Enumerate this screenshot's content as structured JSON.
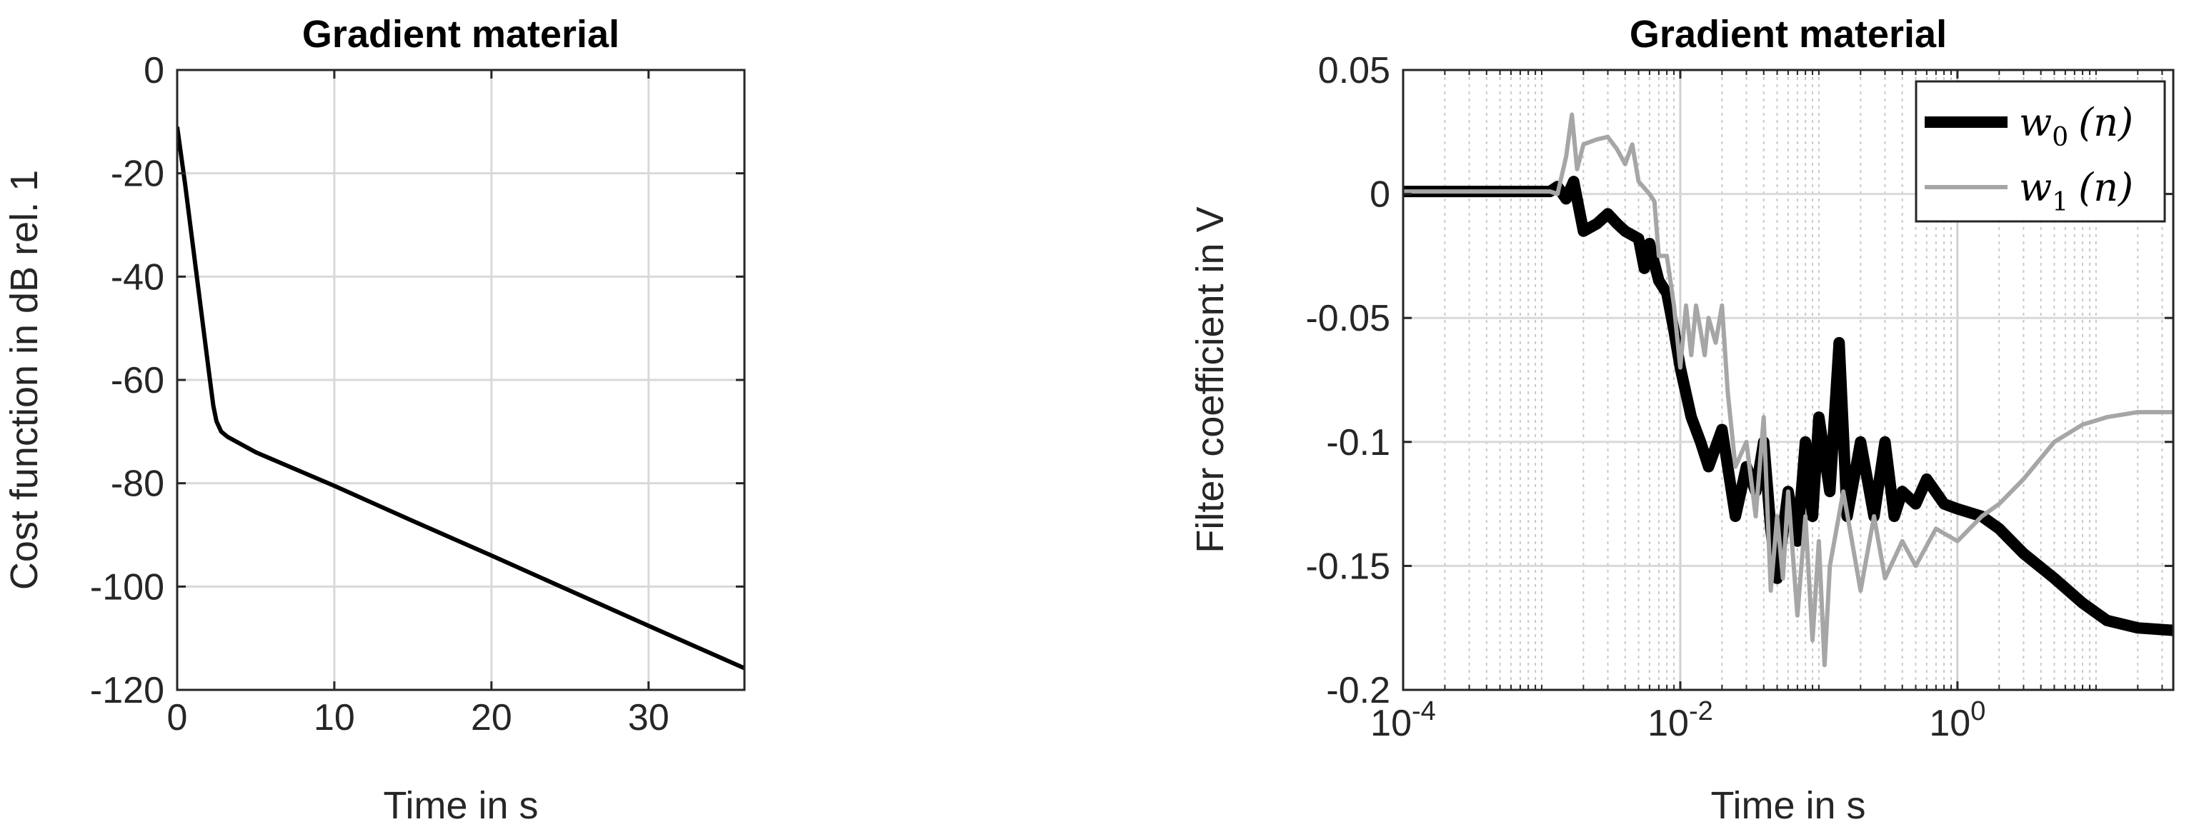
{
  "chart_data": [
    {
      "type": "line",
      "title": "Gradient material",
      "xlabel": "Time in s",
      "ylabel": "Cost function in dB rel. 1",
      "xlim": [
        0,
        36.1
      ],
      "ylim": [
        -120,
        0
      ],
      "xscale": "linear",
      "grid": true,
      "xticks": [
        0,
        10,
        20,
        30
      ],
      "xtick_labels": [
        "0",
        "10",
        "20",
        "30"
      ],
      "yticks": [
        0,
        -20,
        -40,
        -60,
        -80,
        -100,
        -120
      ],
      "ytick_labels": [
        "0",
        "-20",
        "-40",
        "-60",
        "-80",
        "-100",
        "-120"
      ],
      "series": [
        {
          "color": "#000000",
          "x": [
            0,
            0.5,
            1.0,
            1.5,
            2.0,
            2.3,
            2.5,
            2.8,
            3.2,
            5,
            10,
            15,
            20,
            25,
            30,
            36.1
          ],
          "y": [
            -11,
            -22,
            -34,
            -46,
            -58,
            -65,
            -68,
            -70,
            -71,
            -74,
            -80.5,
            -87.3,
            -94,
            -100.8,
            -107.6,
            -115.8
          ]
        }
      ]
    },
    {
      "type": "line",
      "title": "Gradient material",
      "xlabel": "Time in s",
      "ylabel": "Filter coefficient in V",
      "xscale": "log",
      "xlim": [
        0.0001,
        36.1
      ],
      "ylim": [
        -0.2,
        0.05
      ],
      "grid": true,
      "legend": "top-right",
      "xticks": [
        0.0001,
        0.01,
        1
      ],
      "xtick_labels": [
        {
          "base": "10",
          "exp": "-4"
        },
        {
          "base": "10",
          "exp": "-2"
        },
        {
          "base": "10",
          "exp": "0"
        }
      ],
      "yticks": [
        0.05,
        0,
        -0.05,
        -0.1,
        -0.15,
        -0.2
      ],
      "ytick_labels": [
        "0.05",
        "0",
        "-0.05",
        "-0.1",
        "-0.15",
        "-0.2"
      ],
      "series": [
        {
          "name": "w0 (n)",
          "legend_main": "w",
          "legend_sub": "0",
          "legend_rest": "(n)",
          "color": "#000000",
          "style": "thick",
          "x": [
            0.0001,
            0.0009,
            0.00115,
            0.0013,
            0.0015,
            0.0017,
            0.002,
            0.0025,
            0.003,
            0.0035,
            0.004,
            0.005,
            0.0055,
            0.006,
            0.0065,
            0.007,
            0.008,
            0.009,
            0.01,
            0.012,
            0.014,
            0.016,
            0.02,
            0.025,
            0.03,
            0.035,
            0.04,
            0.045,
            0.05,
            0.06,
            0.07,
            0.08,
            0.09,
            0.1,
            0.12,
            0.14,
            0.16,
            0.2,
            0.25,
            0.3,
            0.35,
            0.4,
            0.5,
            0.6,
            0.8,
            1.0,
            1.5,
            2,
            3,
            5,
            8,
            12,
            20,
            36.1
          ],
          "y": [
            0.001,
            0.001,
            0.001,
            0.003,
            -0.002,
            0.005,
            -0.015,
            -0.012,
            -0.008,
            -0.012,
            -0.015,
            -0.018,
            -0.03,
            -0.02,
            -0.028,
            -0.035,
            -0.04,
            -0.055,
            -0.07,
            -0.09,
            -0.1,
            -0.11,
            -0.095,
            -0.13,
            -0.11,
            -0.12,
            -0.1,
            -0.135,
            -0.155,
            -0.12,
            -0.14,
            -0.1,
            -0.13,
            -0.09,
            -0.12,
            -0.06,
            -0.13,
            -0.1,
            -0.13,
            -0.1,
            -0.13,
            -0.12,
            -0.125,
            -0.115,
            -0.125,
            -0.127,
            -0.13,
            -0.135,
            -0.145,
            -0.155,
            -0.165,
            -0.172,
            -0.175,
            -0.176
          ]
        },
        {
          "name": "w1 (n)",
          "legend_main": "w",
          "legend_sub": "1",
          "legend_rest": "(n)",
          "color": "#a6a6a6",
          "style": "thin",
          "x": [
            0.0001,
            0.0009,
            0.00115,
            0.0013,
            0.0015,
            0.00165,
            0.0018,
            0.002,
            0.0025,
            0.003,
            0.0035,
            0.004,
            0.0045,
            0.005,
            0.006,
            0.0065,
            0.007,
            0.008,
            0.009,
            0.01,
            0.011,
            0.012,
            0.013,
            0.014,
            0.015,
            0.016,
            0.018,
            0.02,
            0.022,
            0.025,
            0.03,
            0.035,
            0.04,
            0.045,
            0.05,
            0.055,
            0.06,
            0.07,
            0.08,
            0.09,
            0.1,
            0.11,
            0.12,
            0.15,
            0.2,
            0.25,
            0.3,
            0.4,
            0.5,
            0.7,
            1.0,
            1.5,
            2,
            3,
            5,
            8,
            12,
            20,
            36.1
          ],
          "y": [
            0.001,
            0.001,
            0.001,
            0.0,
            0.015,
            0.032,
            0.01,
            0.02,
            0.022,
            0.023,
            0.018,
            0.012,
            0.02,
            0.005,
            0.0,
            -0.003,
            -0.025,
            -0.025,
            -0.045,
            -0.07,
            -0.045,
            -0.065,
            -0.045,
            -0.055,
            -0.065,
            -0.05,
            -0.06,
            -0.045,
            -0.08,
            -0.11,
            -0.1,
            -0.13,
            -0.09,
            -0.16,
            -0.13,
            -0.155,
            -0.12,
            -0.17,
            -0.13,
            -0.18,
            -0.14,
            -0.19,
            -0.15,
            -0.12,
            -0.16,
            -0.13,
            -0.155,
            -0.14,
            -0.15,
            -0.135,
            -0.14,
            -0.13,
            -0.125,
            -0.115,
            -0.1,
            -0.093,
            -0.09,
            -0.088,
            -0.088
          ]
        }
      ]
    }
  ]
}
